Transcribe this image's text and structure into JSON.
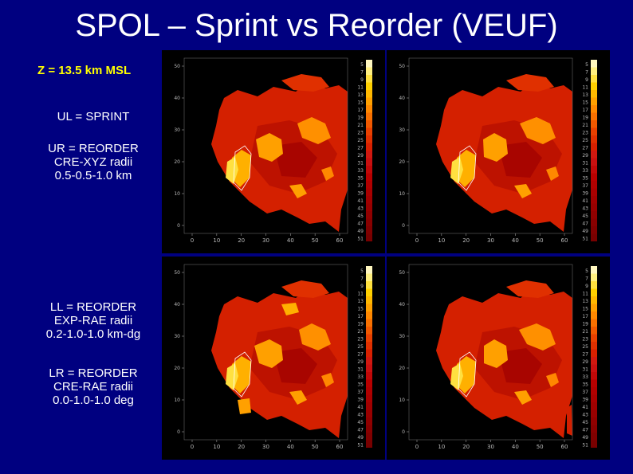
{
  "slide": {
    "title": "SPOL – Sprint vs Reorder (VEUF)",
    "subtitle": "Z = 13.5 km MSL",
    "labels": {
      "ul": "UL = SPRINT",
      "ur": "UR = REORDER\nCRE-XYZ radii\n0.5-0.5-1.0 km",
      "ll": "LL = REORDER\nEXP-RAE radii\n0.2-1.0-1.0 km-dg",
      "lr": "LR = REORDER\nCRE-RAE radii\n0.0-1.0-1.0 deg"
    }
  },
  "panels": {
    "x_ticks": [
      "0",
      "10",
      "20",
      "30",
      "40",
      "50",
      "60"
    ],
    "y_ticks": [
      "50",
      "40",
      "30",
      "20",
      "10",
      "0"
    ],
    "colorbar_ticks": [
      "5",
      "7",
      "9",
      "11",
      "13",
      "15",
      "17",
      "19",
      "21",
      "23",
      "25",
      "27",
      "29",
      "31",
      "33",
      "35",
      "37",
      "39",
      "41",
      "43",
      "45",
      "47",
      "49",
      "51"
    ],
    "colorbar_colors": [
      "#fff7c0",
      "#ffef80",
      "#ffe040",
      "#ffd000",
      "#ffb800",
      "#ffa000",
      "#ff8800",
      "#f87000",
      "#f05800",
      "#e84000",
      "#e03000",
      "#d82000",
      "#d01810",
      "#c81010",
      "#c00808",
      "#b80000",
      "#b00000",
      "#a80000",
      "#a00000",
      "#980000",
      "#900000",
      "#880000",
      "#800000",
      "#780000"
    ]
  }
}
